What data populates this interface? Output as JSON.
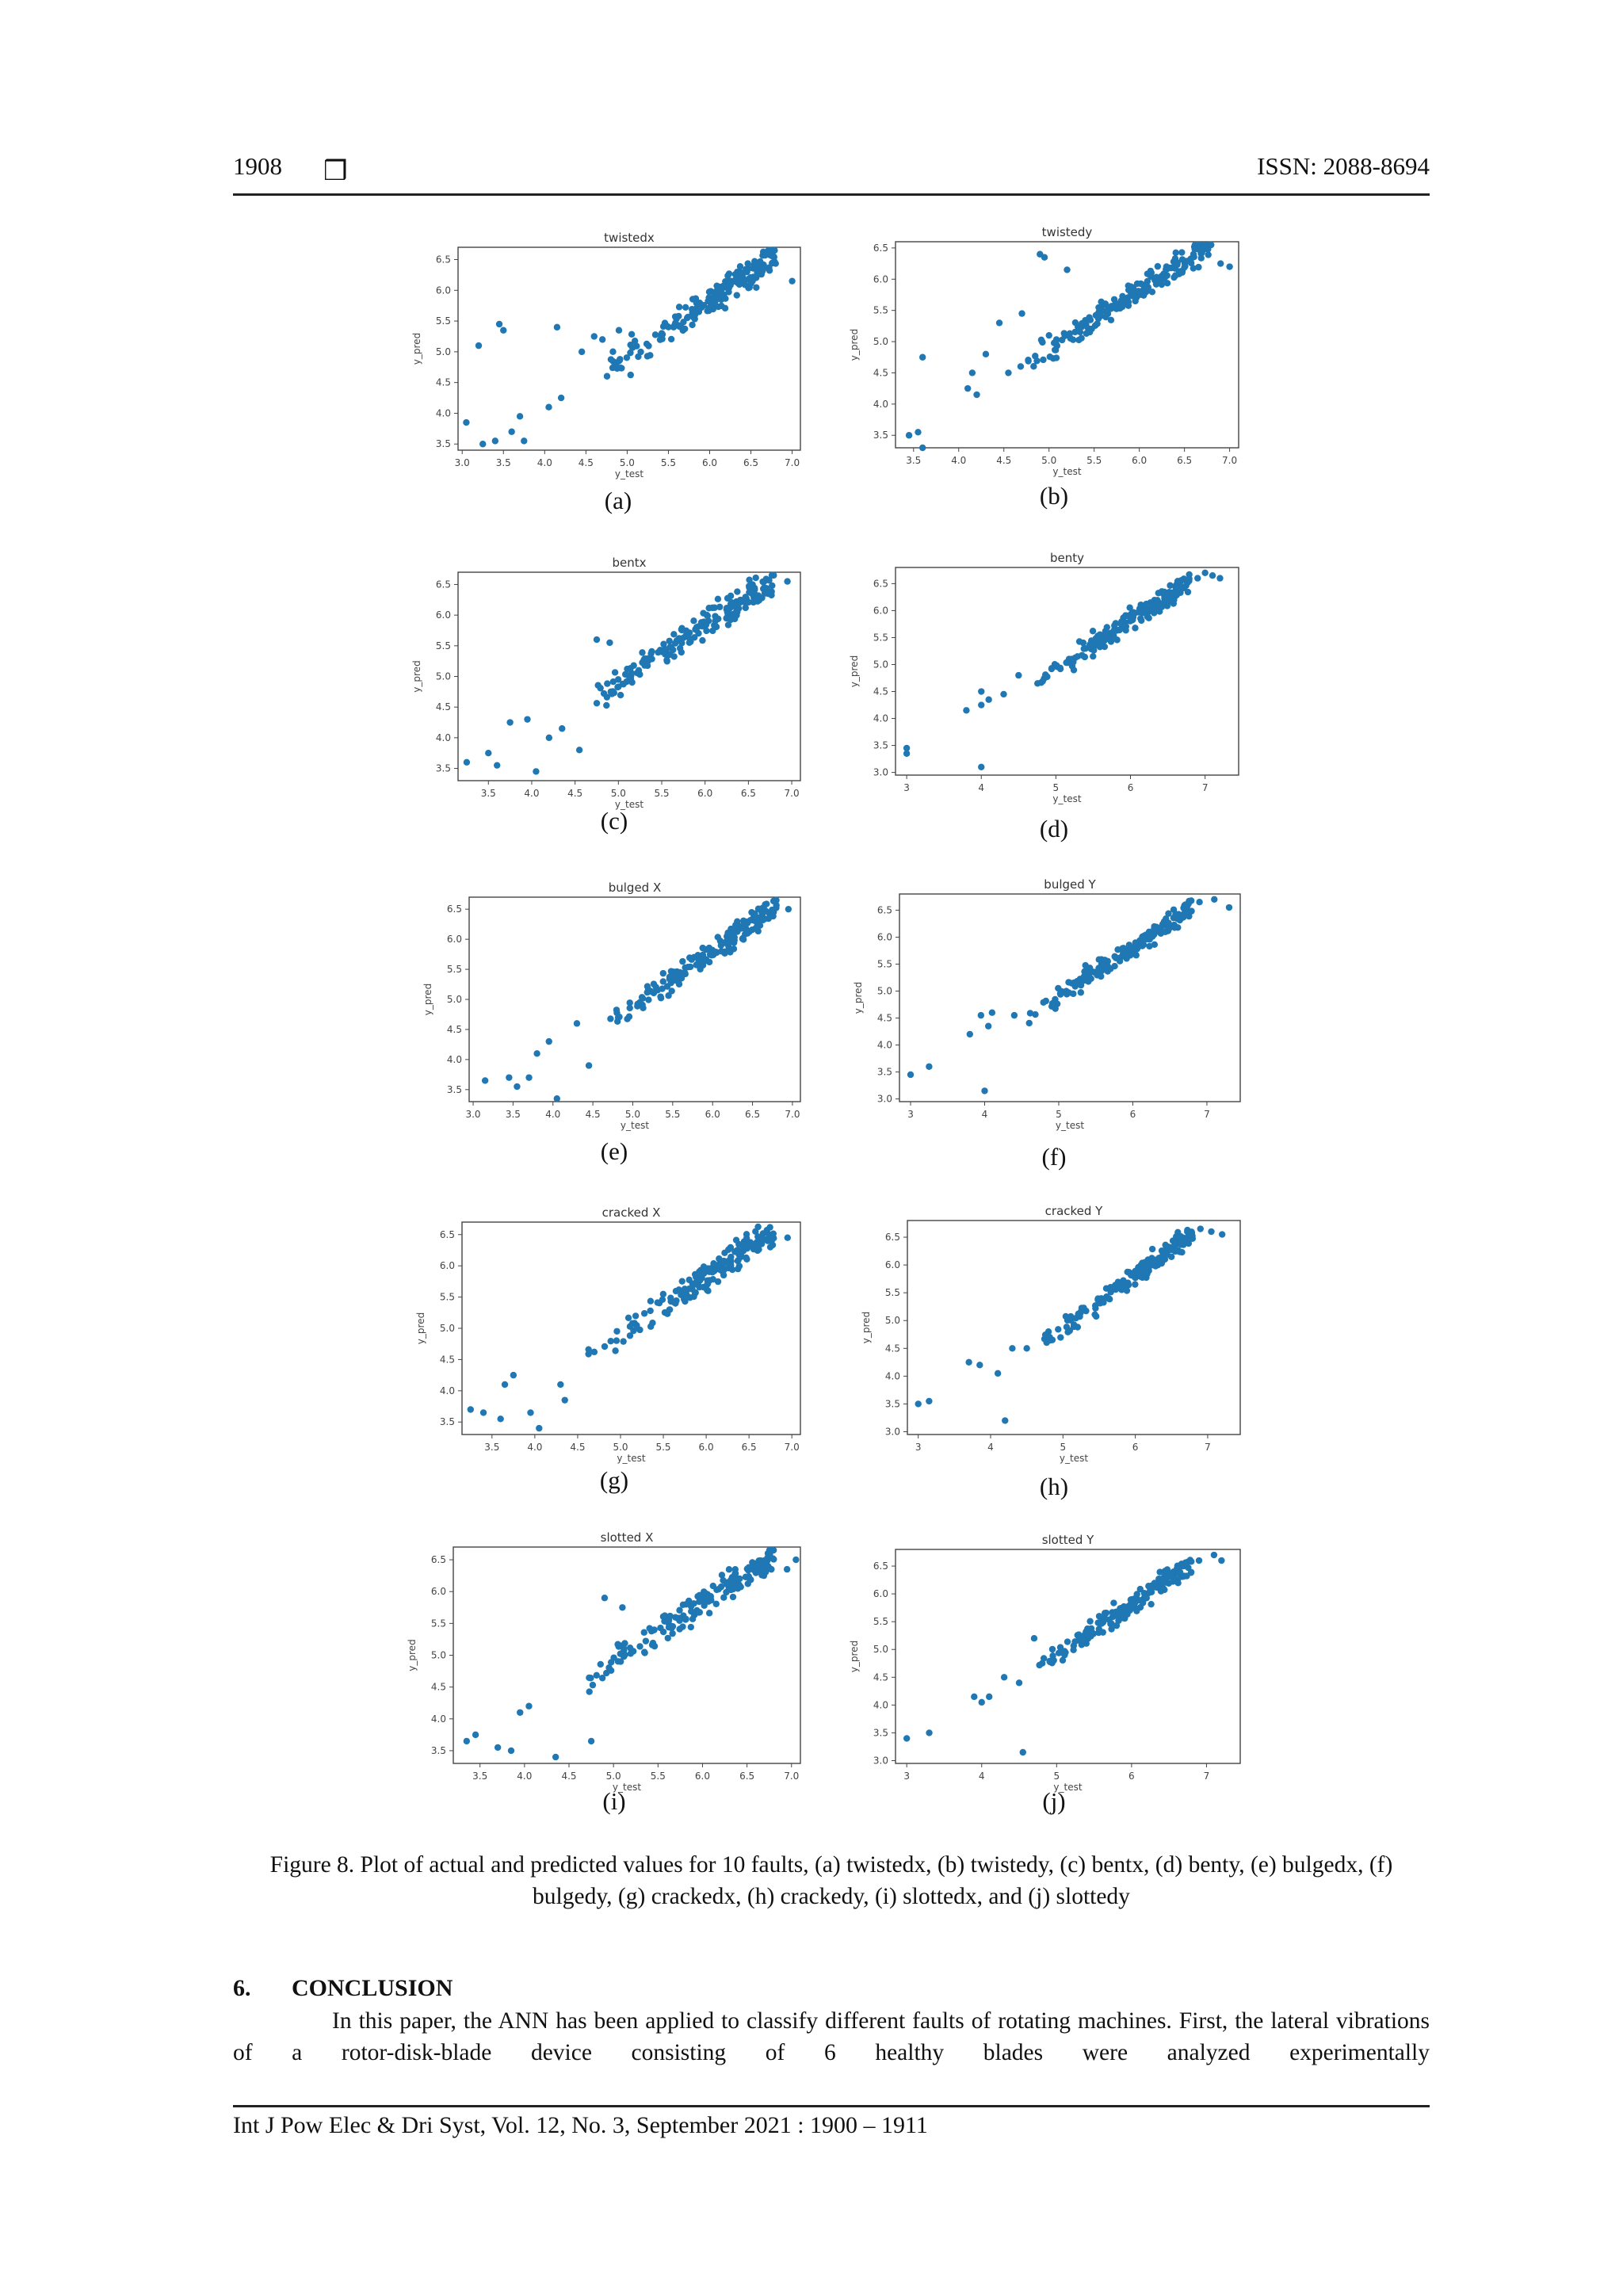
{
  "header": {
    "page_number": "1908",
    "box_glyph": "❒",
    "issn": "ISSN: 2088-8694"
  },
  "colors": {
    "point": "#1f77b4"
  },
  "chart_data": [
    {
      "id": "a",
      "type": "scatter",
      "title": "twistedx",
      "xlabel": "y_test",
      "ylabel": "y_pred",
      "label": "(a)",
      "xlim": [
        2.95,
        7.1
      ],
      "ylim": [
        3.4,
        6.7
      ],
      "xticks": [
        "3.0",
        "3.5",
        "4.0",
        "4.5",
        "5.0",
        "5.5",
        "6.0",
        "6.5",
        "7.0"
      ],
      "xtick_values": [
        3.0,
        3.5,
        4.0,
        4.5,
        5.0,
        5.5,
        6.0,
        6.5,
        7.0
      ],
      "yticks": [
        "3.5",
        "4.0",
        "4.5",
        "5.0",
        "5.5",
        "6.0",
        "6.5"
      ],
      "ytick_values": [
        3.5,
        4.0,
        4.5,
        5.0,
        5.5,
        6.0,
        6.5
      ],
      "seed": 11,
      "n": 180,
      "spread": 0.18,
      "points": [
        [
          3.05,
          3.85
        ],
        [
          3.2,
          5.1
        ],
        [
          3.45,
          5.45
        ],
        [
          3.5,
          5.35
        ],
        [
          3.25,
          3.5
        ],
        [
          3.4,
          3.55
        ],
        [
          3.6,
          3.7
        ],
        [
          3.75,
          3.55
        ],
        [
          3.7,
          3.95
        ],
        [
          4.45,
          5.0
        ],
        [
          4.15,
          5.4
        ],
        [
          4.05,
          4.1
        ],
        [
          4.2,
          4.25
        ],
        [
          7.0,
          6.15
        ],
        [
          4.6,
          5.25
        ],
        [
          4.7,
          5.2
        ],
        [
          4.9,
          5.35
        ]
      ]
    },
    {
      "id": "b",
      "type": "scatter",
      "title": "twistedy",
      "xlabel": "y_test",
      "ylabel": "y_pred",
      "label": "(b)",
      "xlim": [
        3.3,
        7.1
      ],
      "ylim": [
        3.3,
        6.6
      ],
      "xticks": [
        "3.5",
        "4.0",
        "4.5",
        "5.0",
        "5.5",
        "6.0",
        "6.5",
        "7.0"
      ],
      "xtick_values": [
        3.5,
        4.0,
        4.5,
        5.0,
        5.5,
        6.0,
        6.5,
        7.0
      ],
      "yticks": [
        "3.5",
        "4.0",
        "4.5",
        "5.0",
        "5.5",
        "6.0",
        "6.5"
      ],
      "ytick_values": [
        3.5,
        4.0,
        4.5,
        5.0,
        5.5,
        6.0,
        6.5
      ],
      "seed": 23,
      "n": 180,
      "spread": 0.16,
      "points": [
        [
          3.45,
          3.5
        ],
        [
          3.55,
          3.55
        ],
        [
          3.6,
          3.3
        ],
        [
          3.6,
          4.75
        ],
        [
          4.1,
          4.25
        ],
        [
          4.2,
          4.15
        ],
        [
          4.15,
          4.5
        ],
        [
          4.3,
          4.8
        ],
        [
          4.45,
          5.3
        ],
        [
          4.55,
          4.5
        ],
        [
          4.9,
          6.4
        ],
        [
          4.95,
          6.35
        ],
        [
          5.0,
          5.1
        ],
        [
          5.2,
          6.15
        ],
        [
          6.6,
          6.4
        ],
        [
          7.0,
          6.2
        ],
        [
          6.9,
          6.25
        ],
        [
          4.7,
          5.45
        ]
      ]
    },
    {
      "id": "c",
      "type": "scatter",
      "title": "bentx",
      "xlabel": "y_test",
      "ylabel": "y_pred",
      "label": "(c)",
      "xlim": [
        3.15,
        7.1
      ],
      "ylim": [
        3.3,
        6.7
      ],
      "xticks": [
        "3.5",
        "4.0",
        "4.5",
        "5.0",
        "5.5",
        "6.0",
        "6.5",
        "7.0"
      ],
      "xtick_values": [
        3.5,
        4.0,
        4.5,
        5.0,
        5.5,
        6.0,
        6.5,
        7.0
      ],
      "yticks": [
        "3.5",
        "4.0",
        "4.5",
        "5.0",
        "5.5",
        "6.0",
        "6.5"
      ],
      "ytick_values": [
        3.5,
        4.0,
        4.5,
        5.0,
        5.5,
        6.0,
        6.5
      ],
      "seed": 37,
      "n": 180,
      "spread": 0.17,
      "points": [
        [
          3.25,
          3.6
        ],
        [
          3.5,
          3.75
        ],
        [
          3.6,
          3.55
        ],
        [
          3.75,
          4.25
        ],
        [
          3.95,
          4.3
        ],
        [
          4.05,
          3.45
        ],
        [
          4.2,
          4.0
        ],
        [
          4.35,
          4.15
        ],
        [
          4.55,
          3.8
        ],
        [
          4.75,
          5.6
        ],
        [
          4.9,
          5.55
        ],
        [
          6.95,
          6.55
        ]
      ]
    },
    {
      "id": "d",
      "type": "scatter",
      "title": "benty",
      "xlabel": "y_test",
      "ylabel": "y_pred",
      "label": "(d)",
      "xlim": [
        2.85,
        7.45
      ],
      "ylim": [
        2.95,
        6.8
      ],
      "xticks": [
        "3",
        "4",
        "5",
        "6",
        "7"
      ],
      "xtick_values": [
        3,
        4,
        5,
        6,
        7
      ],
      "yticks": [
        "3.0",
        "3.5",
        "4.0",
        "4.5",
        "5.0",
        "5.5",
        "6.0",
        "6.5"
      ],
      "ytick_values": [
        3.0,
        3.5,
        4.0,
        4.5,
        5.0,
        5.5,
        6.0,
        6.5
      ],
      "seed": 41,
      "n": 175,
      "spread": 0.15,
      "points": [
        [
          3.0,
          3.35
        ],
        [
          3.0,
          3.45
        ],
        [
          3.8,
          4.15
        ],
        [
          4.0,
          4.5
        ],
        [
          4.0,
          4.25
        ],
        [
          4.1,
          4.35
        ],
        [
          4.0,
          3.1
        ],
        [
          4.3,
          4.45
        ],
        [
          4.5,
          4.8
        ],
        [
          6.9,
          6.6
        ],
        [
          7.0,
          6.7
        ],
        [
          7.2,
          6.6
        ],
        [
          7.1,
          6.65
        ]
      ]
    },
    {
      "id": "e",
      "type": "scatter",
      "title": "bulged X",
      "xlabel": "y_test",
      "ylabel": "y_pred",
      "label": "(e)",
      "xlim": [
        2.95,
        7.1
      ],
      "ylim": [
        3.3,
        6.7
      ],
      "xticks": [
        "3.0",
        "3.5",
        "4.0",
        "4.5",
        "5.0",
        "5.5",
        "6.0",
        "6.5",
        "7.0"
      ],
      "xtick_values": [
        3.0,
        3.5,
        4.0,
        4.5,
        5.0,
        5.5,
        6.0,
        6.5,
        7.0
      ],
      "yticks": [
        "3.5",
        "4.0",
        "4.5",
        "5.0",
        "5.5",
        "6.0",
        "6.5"
      ],
      "ytick_values": [
        3.5,
        4.0,
        4.5,
        5.0,
        5.5,
        6.0,
        6.5
      ],
      "seed": 53,
      "n": 180,
      "spread": 0.16,
      "points": [
        [
          3.15,
          3.65
        ],
        [
          3.45,
          3.7
        ],
        [
          3.55,
          3.55
        ],
        [
          3.7,
          3.7
        ],
        [
          3.8,
          4.1
        ],
        [
          3.95,
          4.3
        ],
        [
          4.05,
          3.35
        ],
        [
          4.3,
          4.6
        ],
        [
          4.45,
          3.9
        ],
        [
          6.95,
          6.5
        ]
      ]
    },
    {
      "id": "f",
      "type": "scatter",
      "title": "bulged Y",
      "xlabel": "y_test",
      "ylabel": "y_pred",
      "label": "(f)",
      "xlim": [
        2.85,
        7.45
      ],
      "ylim": [
        2.95,
        6.8
      ],
      "xticks": [
        "3",
        "4",
        "5",
        "6",
        "7"
      ],
      "xtick_values": [
        3,
        4,
        5,
        6,
        7
      ],
      "yticks": [
        "3.0",
        "3.5",
        "4.0",
        "4.5",
        "5.0",
        "5.5",
        "6.0",
        "6.5"
      ],
      "ytick_values": [
        3.0,
        3.5,
        4.0,
        4.5,
        5.0,
        5.5,
        6.0,
        6.5
      ],
      "seed": 67,
      "n": 175,
      "spread": 0.14,
      "points": [
        [
          3.0,
          3.45
        ],
        [
          3.25,
          3.6
        ],
        [
          3.8,
          4.2
        ],
        [
          3.95,
          4.55
        ],
        [
          4.05,
          4.35
        ],
        [
          4.1,
          4.6
        ],
        [
          4.0,
          3.15
        ],
        [
          4.4,
          4.55
        ],
        [
          6.9,
          6.65
        ],
        [
          7.1,
          6.7
        ],
        [
          7.3,
          6.55
        ]
      ]
    },
    {
      "id": "g",
      "type": "scatter",
      "title": "cracked X",
      "xlabel": "y_test",
      "ylabel": "y_pred",
      "label": "(g)",
      "xlim": [
        3.15,
        7.1
      ],
      "ylim": [
        3.3,
        6.7
      ],
      "xticks": [
        "3.5",
        "4.0",
        "4.5",
        "5.0",
        "5.5",
        "6.0",
        "6.5",
        "7.0"
      ],
      "xtick_values": [
        3.5,
        4.0,
        4.5,
        5.0,
        5.5,
        6.0,
        6.5,
        7.0
      ],
      "yticks": [
        "3.5",
        "4.0",
        "4.5",
        "5.0",
        "5.5",
        "6.0",
        "6.5"
      ],
      "ytick_values": [
        3.5,
        4.0,
        4.5,
        5.0,
        5.5,
        6.0,
        6.5
      ],
      "seed": 71,
      "n": 180,
      "spread": 0.16,
      "points": [
        [
          3.25,
          3.7
        ],
        [
          3.4,
          3.65
        ],
        [
          3.6,
          3.55
        ],
        [
          3.65,
          4.1
        ],
        [
          3.75,
          4.25
        ],
        [
          3.95,
          3.65
        ],
        [
          4.05,
          3.4
        ],
        [
          4.3,
          4.1
        ],
        [
          4.35,
          3.85
        ],
        [
          6.95,
          6.45
        ]
      ]
    },
    {
      "id": "h",
      "type": "scatter",
      "title": "cracked Y",
      "xlabel": "y_test",
      "ylabel": "y_pred",
      "label": "(h)",
      "xlim": [
        2.85,
        7.45
      ],
      "ylim": [
        2.95,
        6.8
      ],
      "xticks": [
        "3",
        "4",
        "5",
        "6",
        "7"
      ],
      "xtick_values": [
        3,
        4,
        5,
        6,
        7
      ],
      "yticks": [
        "3.0",
        "3.5",
        "4.0",
        "4.5",
        "5.0",
        "5.5",
        "6.0",
        "6.5"
      ],
      "ytick_values": [
        3.0,
        3.5,
        4.0,
        4.5,
        5.0,
        5.5,
        6.0,
        6.5
      ],
      "seed": 83,
      "n": 175,
      "spread": 0.14,
      "points": [
        [
          3.0,
          3.5
        ],
        [
          3.15,
          3.55
        ],
        [
          3.7,
          4.25
        ],
        [
          3.85,
          4.2
        ],
        [
          4.1,
          4.05
        ],
        [
          4.2,
          3.2
        ],
        [
          4.3,
          4.5
        ],
        [
          4.5,
          4.5
        ],
        [
          4.8,
          4.8
        ],
        [
          6.9,
          6.65
        ],
        [
          7.05,
          6.6
        ],
        [
          7.2,
          6.55
        ]
      ]
    },
    {
      "id": "i",
      "type": "scatter",
      "title": "slotted X",
      "xlabel": "y_test",
      "ylabel": "y_pred",
      "label": "(i)",
      "xlim": [
        3.2,
        7.1
      ],
      "ylim": [
        3.3,
        6.7
      ],
      "xticks": [
        "3.5",
        "4.0",
        "4.5",
        "5.0",
        "5.5",
        "6.0",
        "6.5",
        "7.0"
      ],
      "xtick_values": [
        3.5,
        4.0,
        4.5,
        5.0,
        5.5,
        6.0,
        6.5,
        7.0
      ],
      "yticks": [
        "3.5",
        "4.0",
        "4.5",
        "5.0",
        "5.5",
        "6.0",
        "6.5"
      ],
      "ytick_values": [
        3.5,
        4.0,
        4.5,
        5.0,
        5.5,
        6.0,
        6.5
      ],
      "seed": 97,
      "n": 180,
      "spread": 0.16,
      "points": [
        [
          3.35,
          3.65
        ],
        [
          3.45,
          3.75
        ],
        [
          3.7,
          3.55
        ],
        [
          3.85,
          3.5
        ],
        [
          3.95,
          4.1
        ],
        [
          4.05,
          4.2
        ],
        [
          4.35,
          3.4
        ],
        [
          4.75,
          3.65
        ],
        [
          4.9,
          5.9
        ],
        [
          5.1,
          5.75
        ],
        [
          6.95,
          6.35
        ],
        [
          7.05,
          6.5
        ]
      ]
    },
    {
      "id": "j",
      "type": "scatter",
      "title": "slotted Y",
      "xlabel": "y_test",
      "ylabel": "y_pred",
      "label": "(j)",
      "xlim": [
        2.85,
        7.45
      ],
      "ylim": [
        2.95,
        6.8
      ],
      "xticks": [
        "3",
        "4",
        "5",
        "6",
        "7"
      ],
      "xtick_values": [
        3,
        4,
        5,
        6,
        7
      ],
      "yticks": [
        "3.0",
        "3.5",
        "4.0",
        "4.5",
        "5.0",
        "5.5",
        "6.0",
        "6.5"
      ],
      "ytick_values": [
        3.0,
        3.5,
        4.0,
        4.5,
        5.0,
        5.5,
        6.0,
        6.5
      ],
      "seed": 101,
      "n": 175,
      "spread": 0.15,
      "points": [
        [
          3.0,
          3.4
        ],
        [
          3.3,
          3.5
        ],
        [
          3.9,
          4.15
        ],
        [
          4.0,
          4.05
        ],
        [
          4.1,
          4.15
        ],
        [
          4.3,
          4.5
        ],
        [
          4.55,
          3.15
        ],
        [
          4.5,
          4.4
        ],
        [
          4.7,
          5.2
        ],
        [
          6.9,
          6.6
        ],
        [
          7.1,
          6.7
        ],
        [
          7.2,
          6.6
        ]
      ]
    }
  ],
  "figure_caption": "Figure 8. Plot of actual and predicted values for 10 faults, (a) twistedx, (b) twistedy, (c) bentx, (d) benty, (e) bulgedx, (f) bulgedy, (g) crackedx, (h) crackedy, (i) slottedx, and (j) slottedy",
  "section": {
    "number": "6.",
    "title": "CONCLUSION"
  },
  "paragraph": "In this paper, the ANN has been applied to classify different faults of rotating machines. First, the lateral vibrations of a rotor-disk-blade device consisting of 6 healthy blades were analyzed experimentally",
  "footer": "Int J Pow Elec & Dri Syst, Vol. 12, No. 3, September 2021 : 1900 – 1911"
}
